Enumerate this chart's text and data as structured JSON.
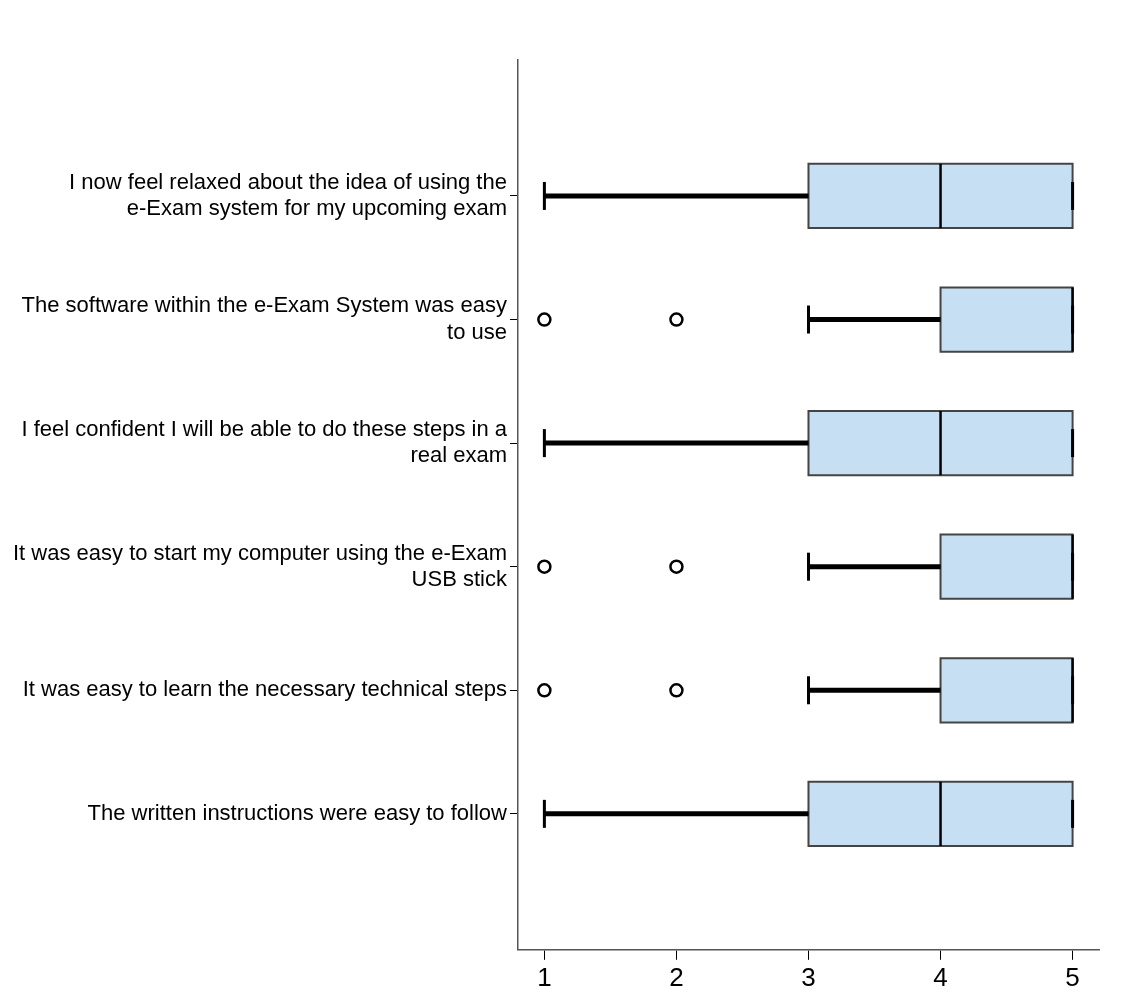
{
  "chart_data": {
    "type": "box",
    "orientation": "horizontal",
    "color": "#c6dff3",
    "grid": false,
    "marker": "circle",
    "categories": [
      "I now feel relaxed about the idea of using the e-Exam system for my upcoming exam",
      "The software within the e-Exam System was easy to use",
      "I feel confident I will be able to do these steps in a real exam",
      "It was easy to start my computer using the e-Exam USB stick",
      "It was easy to learn the necessary technical steps",
      "The written instructions were easy to follow"
    ],
    "boxes": [
      {
        "low": 1,
        "q1": 3,
        "median": 4,
        "q3": 5,
        "high": 5
      },
      {
        "low": 3,
        "q1": 4,
        "median": 5,
        "q3": 5,
        "high": 5,
        "outliers": [
          1,
          2
        ]
      },
      {
        "low": 1,
        "q1": 3,
        "median": 4,
        "q3": 5,
        "high": 5
      },
      {
        "low": 3,
        "q1": 4,
        "median": 5,
        "q3": 5,
        "high": 5,
        "outliers": [
          1,
          2
        ]
      },
      {
        "low": 3,
        "q1": 4,
        "median": 5,
        "q3": 5,
        "high": 5,
        "outliers": [
          1,
          2
        ]
      },
      {
        "low": 1,
        "q1": 3,
        "median": 4,
        "q3": 5,
        "high": 5
      }
    ],
    "xlim": [
      0.8,
      5.2
    ],
    "xticks": [
      1,
      2,
      3,
      4,
      5
    ]
  }
}
